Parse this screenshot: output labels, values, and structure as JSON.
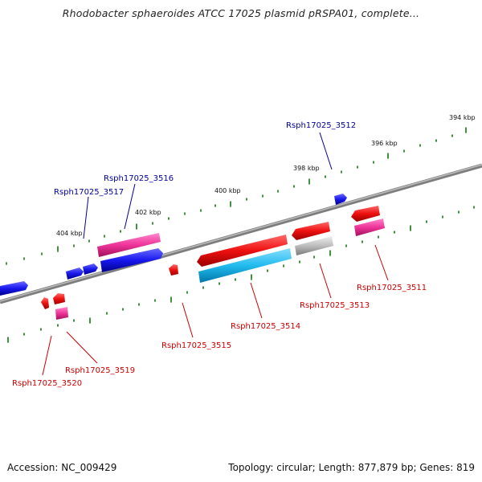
{
  "title": "Rhodobacter sphaeroides ATCC 17025 plasmid pRSPA01, complete...",
  "footer": {
    "accession": "Accession: NC_009429",
    "summary": "Topology: circular; Length: 877,879 bp; Genes: 819"
  },
  "ticks": [
    "394 kbp",
    "396 kbp",
    "398 kbp",
    "400 kbp",
    "402 kbp",
    "404 kbp"
  ],
  "genes": [
    {
      "name": "Rsph17025_3512",
      "strand": "+",
      "color": "#0000bb"
    },
    {
      "name": "Rsph17025_3516",
      "strand": "+",
      "color": "#0000bb"
    },
    {
      "name": "Rsph17025_3517",
      "strand": "+",
      "color": "#0000bb"
    },
    {
      "name": "Rsph17025_3511",
      "strand": "-",
      "color": "#cc0000"
    },
    {
      "name": "Rsph17025_3513",
      "strand": "-",
      "color": "#cc0000"
    },
    {
      "name": "Rsph17025_3514",
      "strand": "-",
      "color": "#cc0000"
    },
    {
      "name": "Rsph17025_3515",
      "strand": "-",
      "color": "#cc0000"
    },
    {
      "name": "Rsph17025_3519",
      "strand": "-",
      "color": "#cc0000"
    },
    {
      "name": "Rsph17025_3520",
      "strand": "-",
      "color": "#cc0000"
    }
  ],
  "colors": {
    "forward_cds": "#1a1aee",
    "reverse_cds": "#ee1111",
    "rna_magenta": "#ee3399",
    "rna_cyan": "#22bbee",
    "pseudo_grey": "#b8b8b8",
    "backbone": "#808080",
    "tick_green": "#117711",
    "forward_label": "#000099",
    "reverse_label": "#cc0000"
  }
}
